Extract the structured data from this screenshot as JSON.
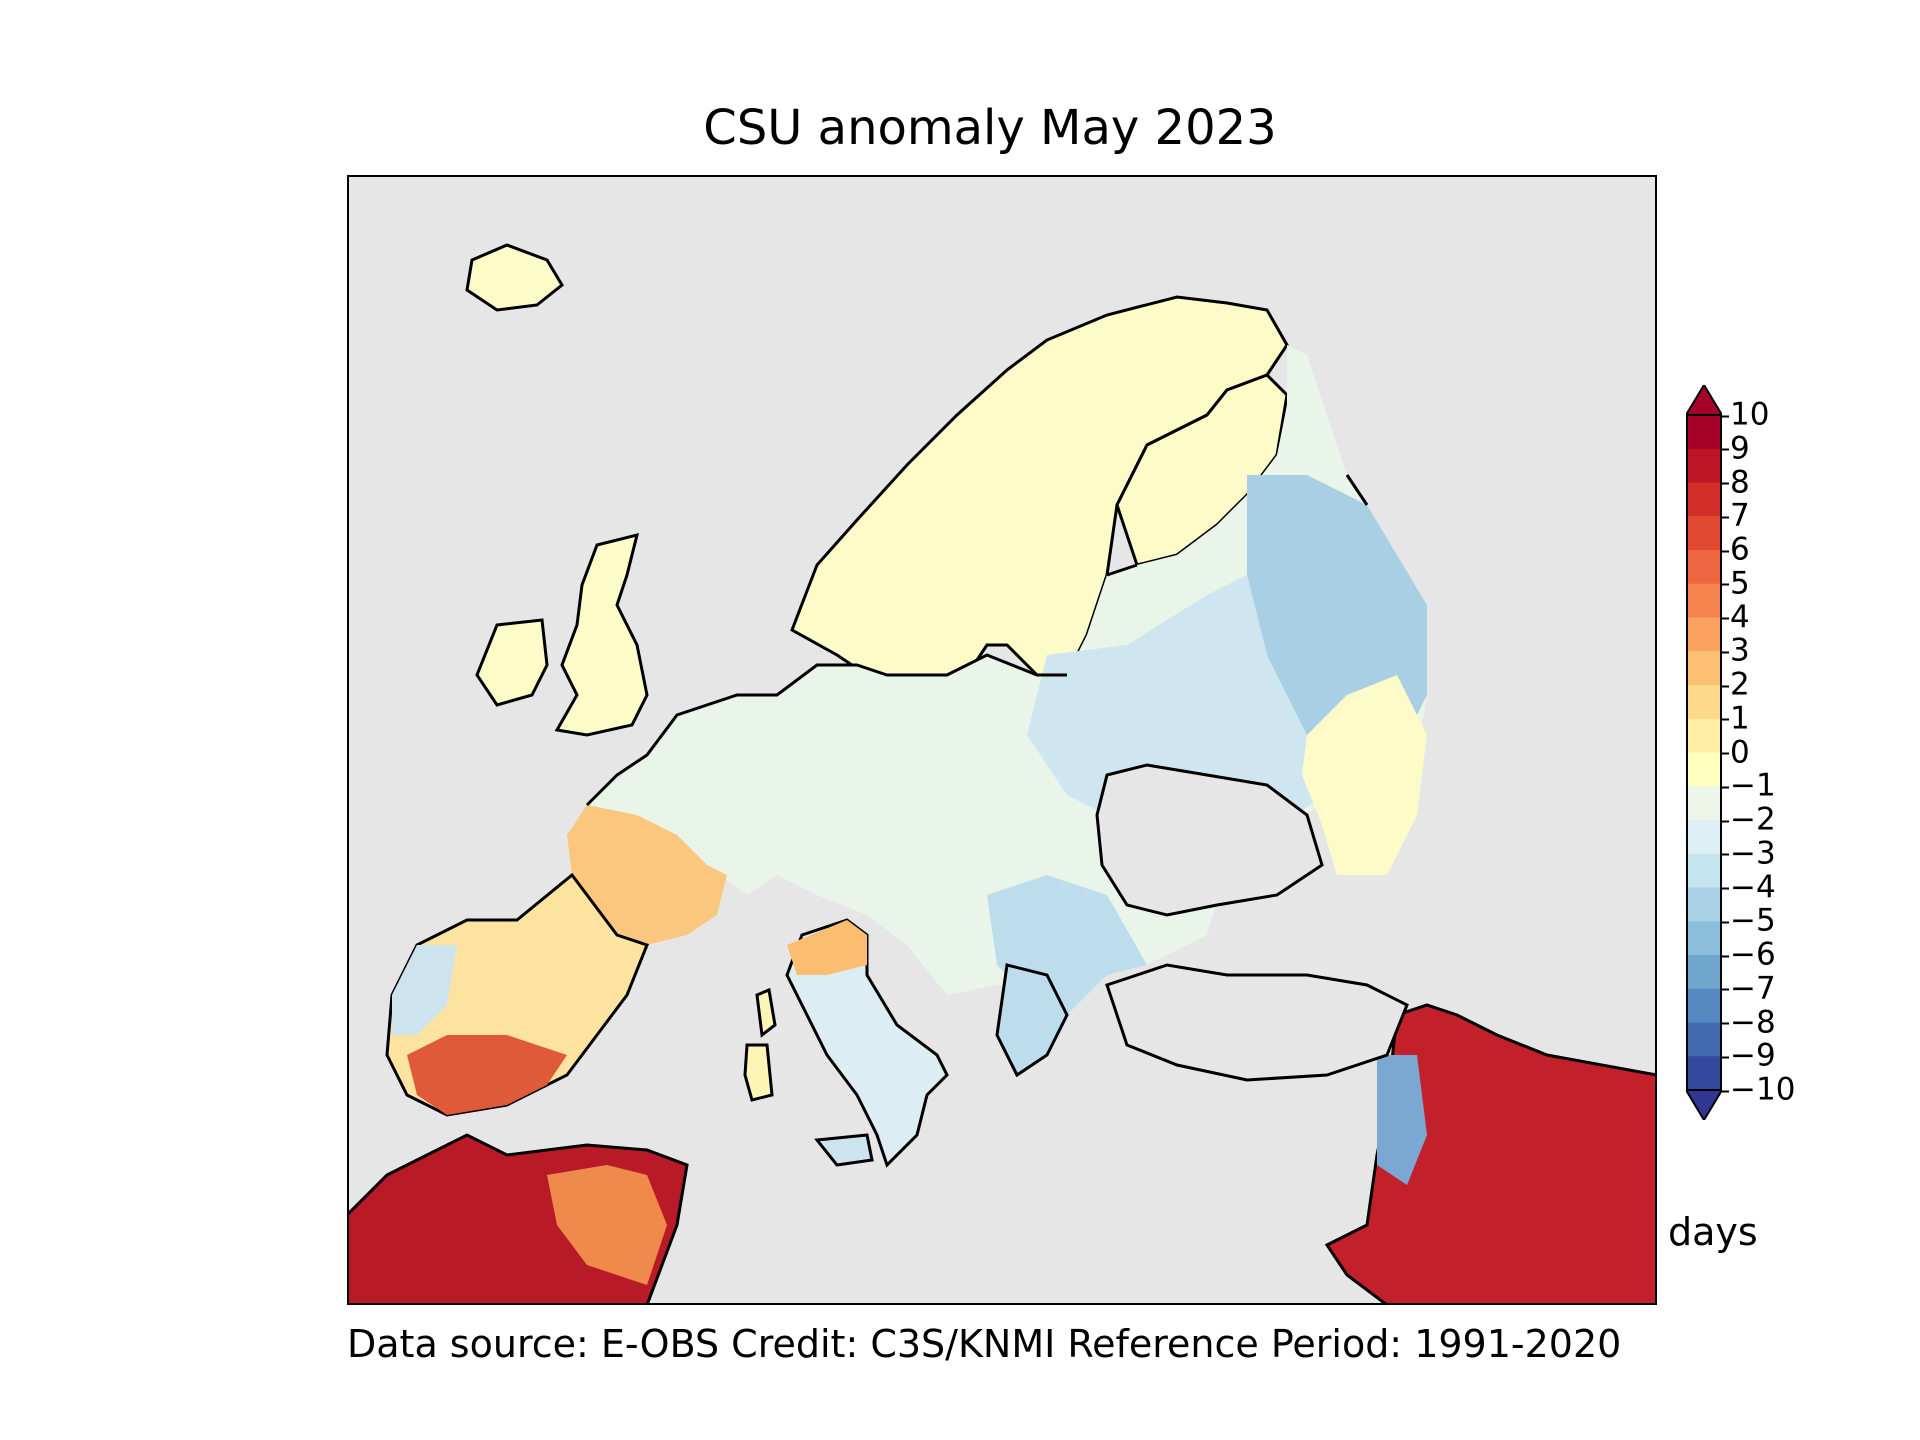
{
  "title": "CSU anomaly May 2023",
  "credits": "Data source: E-OBS  Credit: C3S/KNMI  Reference Period: 1991-2020",
  "colorbar": {
    "units": "days",
    "ticks": [
      "10",
      "9",
      "8",
      "7",
      "6",
      "5",
      "4",
      "3",
      "2",
      "1",
      "0",
      "−1",
      "−2",
      "−3",
      "−4",
      "−5",
      "−6",
      "−7",
      "−8",
      "−9",
      "−10"
    ],
    "extend": "both",
    "colors": [
      "#a50026",
      "#bc1626",
      "#d12f27",
      "#e04a33",
      "#ed6640",
      "#f5844e",
      "#fba260",
      "#fdbf72",
      "#fed98b",
      "#feeda3",
      "#ffffbf",
      "#ecf7ea",
      "#dcf0f5",
      "#c4e4ef",
      "#a9d2e6",
      "#8bbfdc",
      "#6ea6cd",
      "#5689c0",
      "#4169af",
      "#34499d",
      "#313695"
    ]
  },
  "map": {
    "ocean_color": "#e6e6e6",
    "coastline_color": "#000000"
  }
}
